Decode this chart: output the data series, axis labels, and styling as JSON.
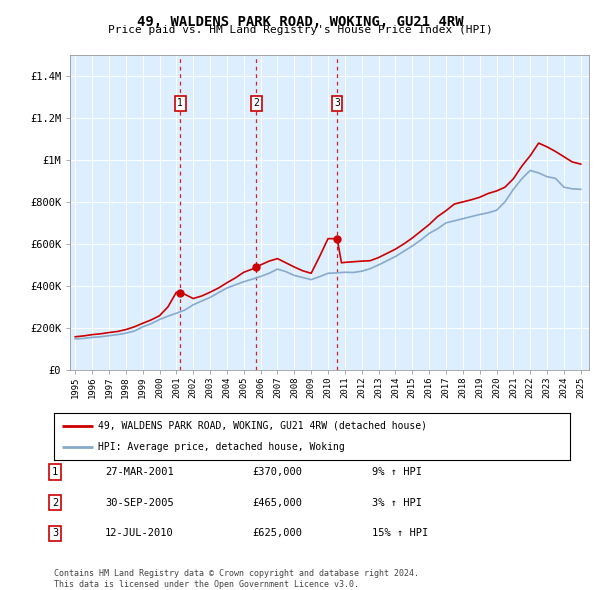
{
  "title": "49, WALDENS PARK ROAD, WOKING, GU21 4RW",
  "subtitle": "Price paid vs. HM Land Registry's House Price Index (HPI)",
  "footer": "Contains HM Land Registry data © Crown copyright and database right 2024.\nThis data is licensed under the Open Government Licence v3.0.",
  "legend_line1": "49, WALDENS PARK ROAD, WOKING, GU21 4RW (detached house)",
  "legend_line2": "HPI: Average price, detached house, Woking",
  "sales": [
    {
      "label": "1",
      "date": "27-MAR-2001",
      "price": "£370,000",
      "hpi": "9% ↑ HPI",
      "year": 2001.23
    },
    {
      "label": "2",
      "date": "30-SEP-2005",
      "price": "£465,000",
      "hpi": "3% ↑ HPI",
      "year": 2005.75
    },
    {
      "label": "3",
      "date": "12-JUL-2010",
      "price": "£625,000",
      "hpi": "15% ↑ HPI",
      "year": 2010.54
    }
  ],
  "red_color": "#cc0000",
  "blue_color": "#88aacc",
  "background_color": "#ddeeff",
  "ylim": [
    0,
    1500000
  ],
  "xlim_start": 1994.7,
  "xlim_end": 2025.5,
  "hpi_years": [
    1995,
    1995.5,
    1996,
    1996.5,
    1997,
    1997.5,
    1998,
    1998.5,
    1999,
    1999.5,
    2000,
    2000.5,
    2001,
    2001.5,
    2002,
    2002.5,
    2003,
    2003.5,
    2004,
    2004.5,
    2005,
    2005.5,
    2006,
    2006.5,
    2007,
    2007.5,
    2008,
    2008.5,
    2009,
    2009.5,
    2010,
    2010.5,
    2011,
    2011.5,
    2012,
    2012.5,
    2013,
    2013.5,
    2014,
    2014.5,
    2015,
    2015.5,
    2016,
    2016.5,
    2017,
    2017.5,
    2018,
    2018.5,
    2019,
    2019.5,
    2020,
    2020.5,
    2021,
    2021.5,
    2022,
    2022.5,
    2023,
    2023.5,
    2024,
    2024.5,
    2025
  ],
  "hpi_values": [
    148000,
    150000,
    155000,
    158000,
    163000,
    168000,
    175000,
    185000,
    205000,
    220000,
    240000,
    256000,
    270000,
    285000,
    310000,
    328000,
    345000,
    368000,
    390000,
    405000,
    420000,
    432000,
    445000,
    460000,
    480000,
    468000,
    450000,
    440000,
    430000,
    444000,
    460000,
    462000,
    465000,
    464000,
    470000,
    482000,
    500000,
    520000,
    540000,
    565000,
    590000,
    618000,
    650000,
    672000,
    700000,
    710000,
    720000,
    730000,
    740000,
    748000,
    760000,
    800000,
    860000,
    910000,
    950000,
    938000,
    920000,
    912000,
    870000,
    862000,
    860000
  ],
  "red_years": [
    1995,
    1995.5,
    1996,
    1996.5,
    1997,
    1997.5,
    1998,
    1998.5,
    1999,
    1999.5,
    2000,
    2000.5,
    2001,
    2001.5,
    2002,
    2002.5,
    2003,
    2003.5,
    2004,
    2004.5,
    2005,
    2005.5,
    2006,
    2006.5,
    2007,
    2007.5,
    2008,
    2008.5,
    2009,
    2009.5,
    2010,
    2010.54,
    2010.8,
    2011,
    2011.5,
    2012,
    2012.5,
    2013,
    2013.5,
    2014,
    2014.5,
    2015,
    2015.5,
    2016,
    2016.5,
    2017,
    2017.5,
    2018,
    2018.5,
    2019,
    2019.5,
    2020,
    2020.5,
    2021,
    2021.5,
    2022,
    2022.5,
    2023,
    2023.5,
    2024,
    2024.5,
    2025
  ],
  "red_values": [
    158000,
    162000,
    168000,
    172000,
    178000,
    183000,
    192000,
    205000,
    222000,
    238000,
    258000,
    300000,
    370000,
    360000,
    340000,
    352000,
    370000,
    390000,
    415000,
    438000,
    465000,
    480000,
    500000,
    518000,
    530000,
    510000,
    490000,
    472000,
    460000,
    540000,
    625000,
    625000,
    510000,
    512000,
    515000,
    518000,
    520000,
    535000,
    555000,
    575000,
    600000,
    628000,
    660000,
    692000,
    730000,
    758000,
    790000,
    800000,
    810000,
    822000,
    840000,
    852000,
    870000,
    910000,
    970000,
    1020000,
    1080000,
    1062000,
    1040000,
    1015000,
    990000,
    980000
  ],
  "yticks": [
    0,
    200000,
    400000,
    600000,
    800000,
    1000000,
    1200000,
    1400000
  ],
  "ytick_labels": [
    "£0",
    "£200K",
    "£400K",
    "£600K",
    "£800K",
    "£1M",
    "£1.2M",
    "£1.4M"
  ],
  "xticks": [
    1995,
    1996,
    1997,
    1998,
    1999,
    2000,
    2001,
    2002,
    2003,
    2004,
    2005,
    2006,
    2007,
    2008,
    2009,
    2010,
    2011,
    2012,
    2013,
    2014,
    2015,
    2016,
    2017,
    2018,
    2019,
    2020,
    2021,
    2022,
    2023,
    2024,
    2025
  ]
}
